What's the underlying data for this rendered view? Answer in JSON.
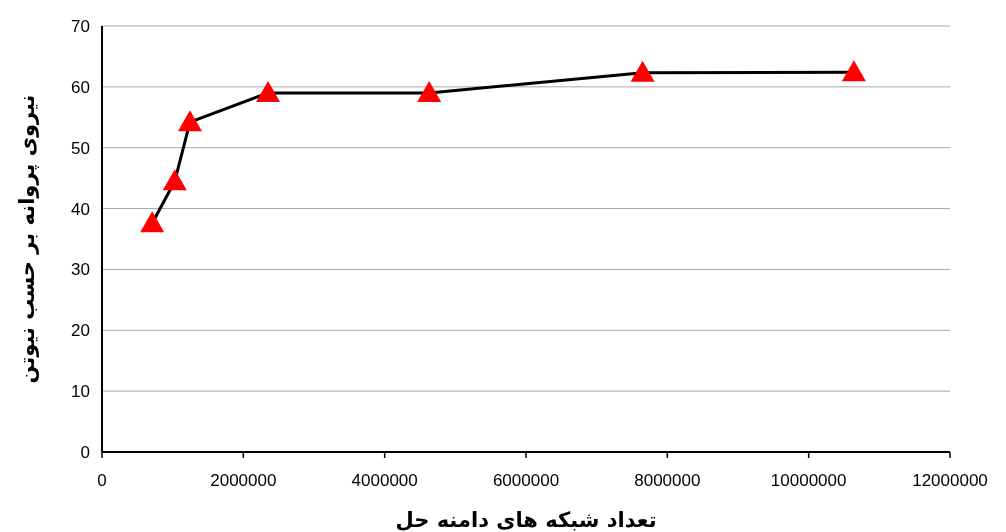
{
  "chart_data": {
    "type": "line",
    "xlabel": "تعداد شبکه های دامنه حل",
    "ylabel": "نیروی پروانه بر حسب نیوتن",
    "x": [
      710000,
      1030000,
      1245000,
      2350000,
      4630000,
      7650000,
      10640000
    ],
    "series": [
      {
        "color": "#000000",
        "colors": [
          "#ff0000",
          "#ff0000",
          "#ff0000",
          "#ff0000",
          "#ff0000",
          "#ff0000",
          "#ff0000"
        ],
        "values": [
          37.6,
          44.5,
          54.2,
          59.0,
          59.0,
          62.3,
          62.4
        ]
      }
    ],
    "xlim": [
      0,
      12000000
    ],
    "xticks": [
      0,
      2000000,
      4000000,
      6000000,
      8000000,
      10000000,
      12000000
    ],
    "ylim": [
      0,
      70
    ],
    "yticks": [
      0,
      10,
      20,
      30,
      40,
      50,
      60,
      70
    ],
    "grid": "y",
    "marker": "triangle",
    "line_style": "solid"
  }
}
